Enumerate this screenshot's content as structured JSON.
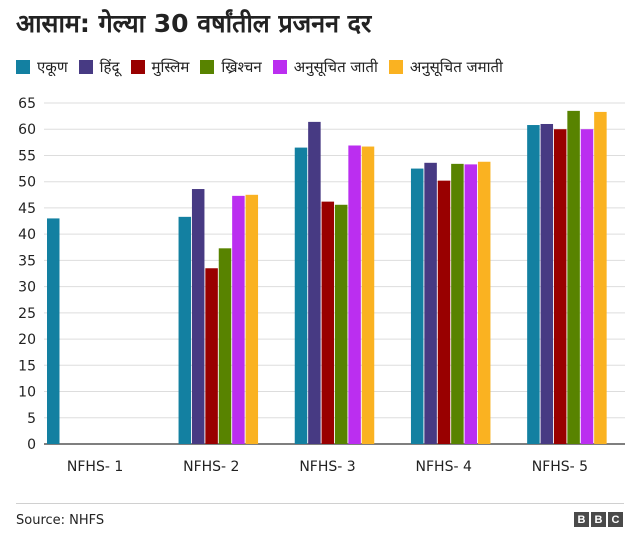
{
  "chart_data": {
    "type": "bar",
    "title": "आसाम: गेल्या 30 वर्षांतील प्रजनन दर",
    "categories": [
      "NFHS- 1",
      "NFHS- 2",
      "NFHS- 3",
      "NFHS- 4",
      "NFHS- 5"
    ],
    "series": [
      {
        "name": "एकूण",
        "color": "#1380a1",
        "values": [
          43,
          43.3,
          56.5,
          52.5,
          60.8
        ]
      },
      {
        "name": "हिंदू",
        "color": "#473a83",
        "values": [
          null,
          48.6,
          61.4,
          53.6,
          61
        ]
      },
      {
        "name": "मुस्लिम",
        "color": "#990000",
        "values": [
          null,
          33.5,
          46.2,
          50.2,
          60
        ]
      },
      {
        "name": "ख्रिश्चन",
        "color": "#588300",
        "values": [
          null,
          37.3,
          45.6,
          53.4,
          63.5
        ]
      },
      {
        "name": "अनुसूचित जाती",
        "color": "#bb2ef0",
        "values": [
          null,
          47.3,
          56.9,
          53.3,
          60
        ]
      },
      {
        "name": "अनुसूचित जमाती",
        "color": "#fab221",
        "values": [
          null,
          47.5,
          56.7,
          53.8,
          63.3
        ]
      }
    ],
    "ylim": [
      0,
      65
    ],
    "yticks": [
      0,
      5,
      10,
      15,
      20,
      25,
      30,
      35,
      40,
      45,
      50,
      55,
      60,
      65
    ],
    "grid": true,
    "legend": "top-left",
    "xlabel": "",
    "ylabel": ""
  },
  "footer": {
    "source": "Source: NHFS",
    "logo_letters": [
      "B",
      "B",
      "C"
    ]
  }
}
